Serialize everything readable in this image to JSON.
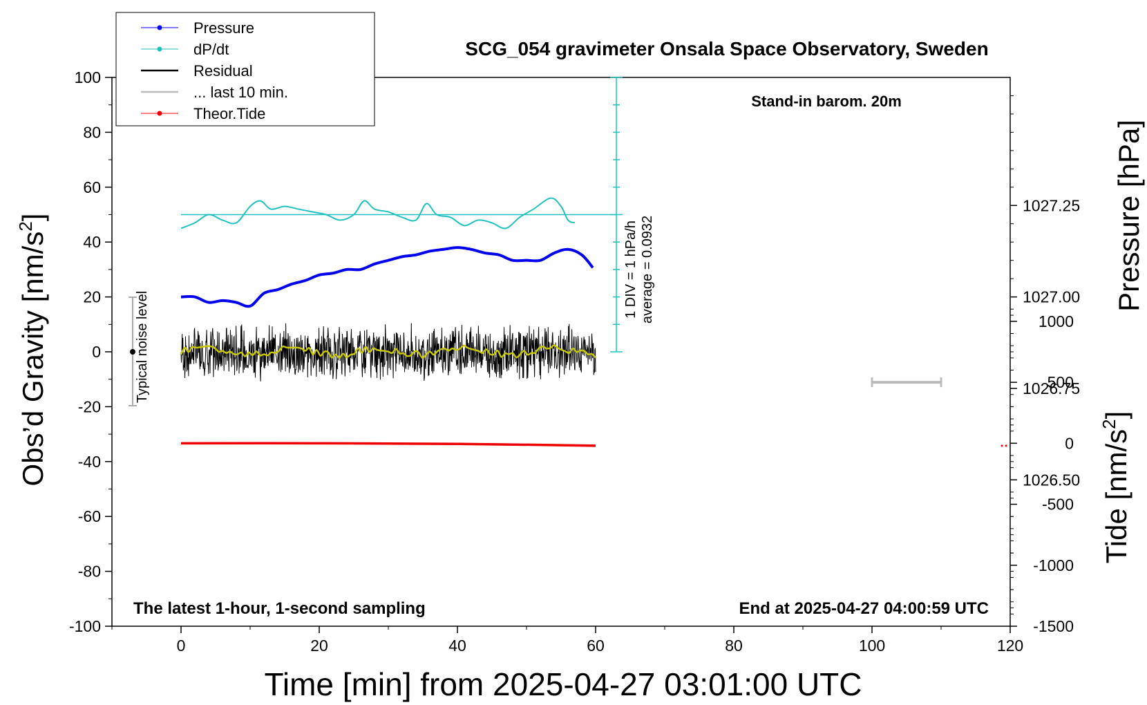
{
  "chart_data": {
    "type": "line",
    "title": "SCG_054 gravimeter Onsala Space Observatory, Sweden",
    "xlabel": "Time [min] from 2025-04-27 03:01:00 UTC",
    "ylabel_main": "Obs’d Gravity [nm/s",
    "ylabel_pressure": "Pressure [hPa]",
    "ylabel_tide": "Tide [nm/s",
    "ylabel_sup": "2",
    "ylabel_close": "]",
    "xlim": [
      -10,
      120
    ],
    "ylim": [
      -100,
      100
    ],
    "pressure_lim": [
      1026.1,
      1027.6
    ],
    "tide_lim": [
      -1500,
      3000
    ],
    "x_ticks": [
      "0",
      "20",
      "40",
      "60",
      "80",
      "100",
      "120"
    ],
    "y_ticks": [
      "100",
      "80",
      "60",
      "40",
      "20",
      "0",
      "-20",
      "-40",
      "-60",
      "-80",
      "-100"
    ],
    "pressure_ticks": [
      "1027.25",
      "1027.00",
      "1026.75",
      "1026.50"
    ],
    "tide_ticks": [
      "1000",
      "500",
      "0",
      "-500",
      "-1000",
      "-1500"
    ],
    "legend": [
      {
        "label": "Pressure",
        "color": "#0000ee",
        "marker": true
      },
      {
        "label": "dP/dt",
        "color": "#20c0c0",
        "marker": true
      },
      {
        "label": "Residual",
        "color": "#000000",
        "marker": false
      },
      {
        "label": "... last 10 min.",
        "color": "#bbbbbb",
        "marker": false
      },
      {
        "label": "Theor.Tide",
        "color": "#ee0000",
        "marker": true
      }
    ],
    "legend_position": "top-left",
    "annotations": {
      "stand_in": "Stand-in barom. 20m",
      "sampling": "The latest 1-hour, 1-second sampling",
      "end": "End at 2025-04-27 04:00:59 UTC",
      "noise": "Typical noise level",
      "div_line1": "1 DIV = 1 hPa/h",
      "div_line2": "average = 0.0932"
    },
    "series": [
      {
        "name": "Pressure",
        "color": "#0000ee",
        "axis": "pressure",
        "x": [
          0,
          2,
          4,
          6,
          8,
          10,
          12,
          14,
          16,
          18,
          20,
          22,
          24,
          26,
          28,
          30,
          32,
          34,
          36,
          38,
          40,
          42,
          44,
          46,
          48,
          50,
          52,
          54,
          56,
          58,
          59.6
        ],
        "values": [
          1027.0,
          1027.0,
          1026.985,
          1026.99,
          1026.985,
          1026.975,
          1027.01,
          1027.02,
          1027.035,
          1027.045,
          1027.06,
          1027.065,
          1027.075,
          1027.075,
          1027.09,
          1027.1,
          1027.11,
          1027.115,
          1027.125,
          1027.13,
          1027.135,
          1027.13,
          1027.12,
          1027.115,
          1027.1,
          1027.1,
          1027.1,
          1027.12,
          1027.13,
          1027.115,
          1027.08
        ]
      },
      {
        "name": "dP/dt",
        "color": "#20c0c0",
        "axis": "main",
        "x": [
          0,
          2,
          4,
          6,
          8,
          10,
          11.5,
          13,
          15,
          17,
          19,
          21,
          23,
          25,
          26.5,
          28,
          30,
          32,
          34,
          35.5,
          37,
          39,
          41,
          43,
          45,
          47,
          49,
          51,
          53.5,
          55,
          56,
          57
        ],
        "values": [
          45,
          47,
          50,
          48,
          47,
          53,
          55,
          52,
          53,
          52,
          51,
          50,
          48,
          50,
          55,
          52,
          51,
          49,
          48,
          54,
          50,
          49,
          46,
          48,
          47,
          45,
          49,
          52,
          56,
          53,
          48,
          47
        ]
      },
      {
        "name": "Theor.Tide",
        "color": "#ee0000",
        "axis": "tide",
        "x": [
          0,
          20,
          40,
          60
        ],
        "values": [
          0,
          0,
          -5,
          -20
        ]
      }
    ],
    "residual_summary": {
      "x_range": [
        0,
        60
      ],
      "mean": 0,
      "amplitude": 10
    },
    "last10_bar": {
      "x": [
        100,
        110
      ],
      "tide_value": 500
    }
  }
}
